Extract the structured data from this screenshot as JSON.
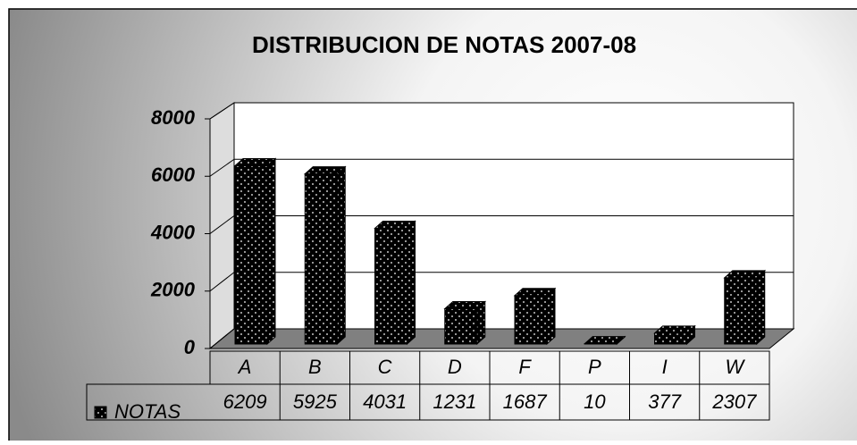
{
  "chart_data": {
    "type": "bar",
    "title": "DISTRIBUCION DE NOTAS 2007-08",
    "categories": [
      "A",
      "B",
      "C",
      "D",
      "F",
      "P",
      "I",
      "W"
    ],
    "series": [
      {
        "name": "NOTAS",
        "color": "#000000",
        "values": [
          6209,
          5925,
          4031,
          1231,
          1687,
          10,
          377,
          2307
        ]
      }
    ],
    "ylim": [
      0,
      8000
    ],
    "yticks": [
      0,
      2000,
      4000,
      6000,
      8000
    ],
    "grid": true
  }
}
